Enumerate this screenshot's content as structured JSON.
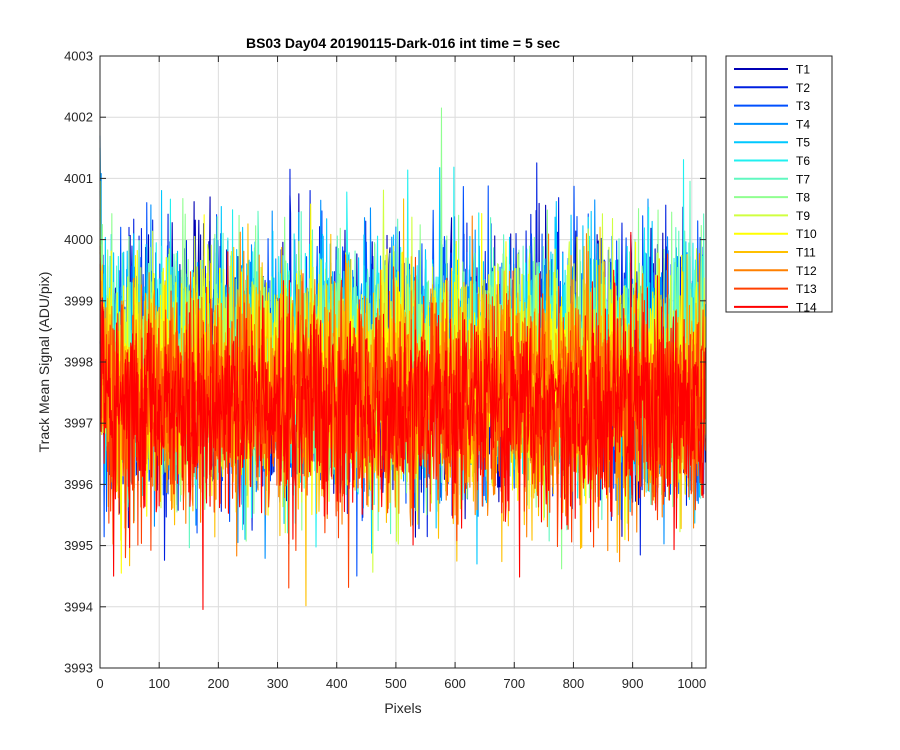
{
  "chart_data": {
    "type": "line",
    "title": "BS03 Day04 20190115-Dark-016 int time = 5 sec",
    "xlabel": "Pixels",
    "ylabel": "Track Mean Signal (ADU/pix)",
    "xlim": [
      0,
      1024
    ],
    "ylim": [
      3993,
      4003
    ],
    "xticks": [
      0,
      100,
      200,
      300,
      400,
      500,
      600,
      700,
      800,
      900,
      1000
    ],
    "yticks": [
      3993,
      3994,
      3995,
      3996,
      3997,
      3998,
      3999,
      4000,
      4001,
      4002,
      4003
    ],
    "grid": true,
    "legend_position": "outside-top-right",
    "n_points": 1024,
    "series": [
      {
        "name": "T1",
        "color": "#0000b4",
        "mean": 3997.9,
        "spread": 1.45,
        "start": 3998.3
      },
      {
        "name": "T2",
        "color": "#0020e0",
        "mean": 3997.9,
        "spread": 1.4,
        "start": 3998.0
      },
      {
        "name": "T3",
        "color": "#0050ff",
        "mean": 3997.9,
        "spread": 1.4,
        "start": 3999.0
      },
      {
        "name": "T4",
        "color": "#0090ff",
        "mean": 3998.0,
        "spread": 1.4,
        "start": 4001.7
      },
      {
        "name": "T5",
        "color": "#00c8ff",
        "mean": 3998.0,
        "spread": 1.35,
        "start": 4001.5
      },
      {
        "name": "T6",
        "color": "#20f0f0",
        "mean": 3998.0,
        "spread": 1.3,
        "start": 4000.8
      },
      {
        "name": "T7",
        "color": "#60f8c0",
        "mean": 3997.9,
        "spread": 1.3,
        "start": 4000.5
      },
      {
        "name": "T8",
        "color": "#90ff90",
        "mean": 3997.9,
        "spread": 1.3,
        "start": 4000.3
      },
      {
        "name": "T9",
        "color": "#d0ff40",
        "mean": 3997.8,
        "spread": 1.3,
        "start": 4000.2
      },
      {
        "name": "T10",
        "color": "#ffff00",
        "mean": 3997.7,
        "spread": 1.3,
        "start": 4000.0
      },
      {
        "name": "T11",
        "color": "#ffc000",
        "mean": 3997.5,
        "spread": 1.3,
        "start": 3999.8
      },
      {
        "name": "T12",
        "color": "#ff8000",
        "mean": 3997.4,
        "spread": 1.3,
        "start": 3999.7
      },
      {
        "name": "T13",
        "color": "#ff4000",
        "mean": 3997.3,
        "spread": 1.25,
        "start": 3999.6
      },
      {
        "name": "T14",
        "color": "#ff0000",
        "mean": 3997.2,
        "spread": 1.2,
        "start": 3999.9
      }
    ]
  }
}
